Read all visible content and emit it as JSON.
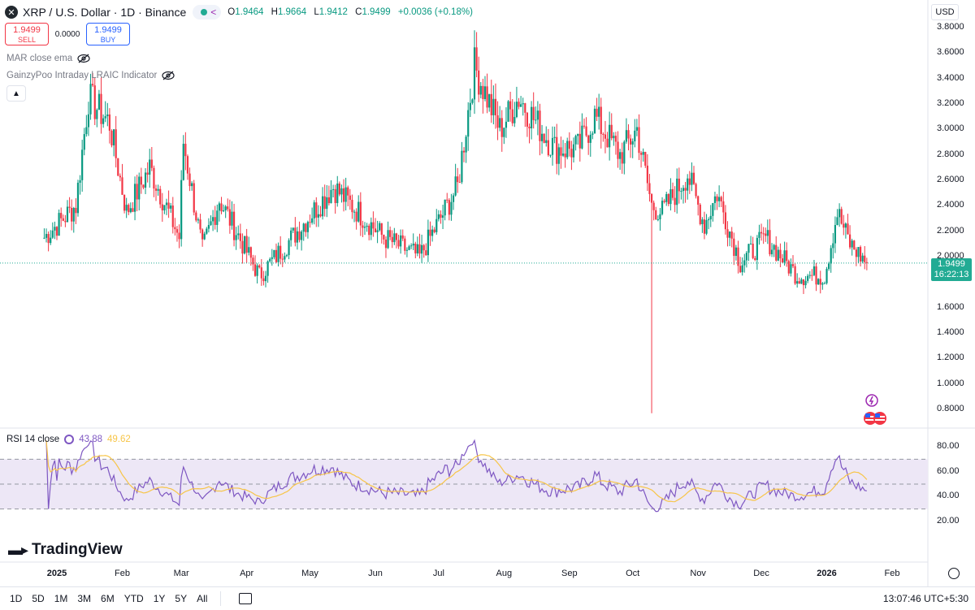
{
  "header": {
    "symbol_title": "XRP / U.S. Dollar · 1D · Binance",
    "logo_glyph": "✕",
    "ohlc": {
      "o_label": "O",
      "o_value": "1.9464",
      "h_label": "H",
      "h_value": "1.9664",
      "l_label": "L",
      "l_value": "1.9412",
      "c_label": "C",
      "c_value": "1.9499",
      "change": "+0.0036 (+0.18%)"
    }
  },
  "trade": {
    "sell_price": "1.9499",
    "sell_label": "SELL",
    "spread": "0.0000",
    "buy_price": "1.9499",
    "buy_label": "BUY"
  },
  "indicators": [
    {
      "label": "MAR close ema"
    },
    {
      "label": "GainzyPoo Intraday LRAIC Indicator"
    }
  ],
  "currency": "USD",
  "price_axis": [
    "3.8000",
    "3.6000",
    "3.4000",
    "3.2000",
    "3.0000",
    "2.8000",
    "2.6000",
    "2.4000",
    "2.2000",
    "2.0000",
    "1.6000",
    "1.4000",
    "1.2000",
    "1.0000",
    "0.8000"
  ],
  "price_tag": {
    "price": "1.9499",
    "countdown": "16:22:13"
  },
  "rsi": {
    "title": "RSI 14 close",
    "rsi_value": "43.88",
    "ma_value": "49.62",
    "axis": [
      "80.00",
      "60.00",
      "40.00",
      "20.00"
    ]
  },
  "time_axis": [
    {
      "label": "2025",
      "bold": true
    },
    {
      "label": "Feb"
    },
    {
      "label": "Mar"
    },
    {
      "label": "Apr"
    },
    {
      "label": "May"
    },
    {
      "label": "Jun"
    },
    {
      "label": "Jul"
    },
    {
      "label": "Aug"
    },
    {
      "label": "Sep"
    },
    {
      "label": "Oct"
    },
    {
      "label": "Nov"
    },
    {
      "label": "Dec"
    },
    {
      "label": "2026",
      "bold": true
    },
    {
      "label": "Feb"
    }
  ],
  "brand": "TradingView",
  "bottom_bar": {
    "ranges": [
      "1D",
      "5D",
      "1M",
      "3M",
      "6M",
      "YTD",
      "1Y",
      "5Y",
      "All"
    ],
    "clock": "13:07:46 UTC+5:30"
  },
  "colors": {
    "up": "#089981",
    "down": "#f23645",
    "rsi_line": "#7e57c2",
    "rsi_ma": "#f7c548",
    "rsi_band": "#ede7f6",
    "last_price": "#22ab94"
  },
  "chart_data": {
    "type": "candlestick",
    "symbol": "XRP / U.S. Dollar",
    "interval": "1D",
    "exchange": "Binance",
    "ylim": [
      0.75,
      3.85
    ],
    "last_price": 1.9499,
    "anchors": [
      {
        "date": "2024-12-26",
        "close": 2.15
      },
      {
        "date": "2025-01-10",
        "close": 2.4
      },
      {
        "date": "2025-01-16",
        "close": 3.25
      },
      {
        "date": "2025-01-26",
        "close": 3.05
      },
      {
        "date": "2025-02-03",
        "close": 2.35
      },
      {
        "date": "2025-02-14",
        "close": 2.7
      },
      {
        "date": "2025-02-28",
        "close": 2.15
      },
      {
        "date": "2025-03-02",
        "close": 2.9
      },
      {
        "date": "2025-03-11",
        "close": 2.05
      },
      {
        "date": "2025-03-19",
        "close": 2.45
      },
      {
        "date": "2025-04-07",
        "close": 1.85
      },
      {
        "date": "2025-04-25",
        "close": 2.2
      },
      {
        "date": "2025-05-12",
        "close": 2.55
      },
      {
        "date": "2025-06-05",
        "close": 2.15
      },
      {
        "date": "2025-06-22",
        "close": 2.0
      },
      {
        "date": "2025-07-10",
        "close": 2.55
      },
      {
        "date": "2025-07-18",
        "close": 3.5
      },
      {
        "date": "2025-07-30",
        "close": 3.0
      },
      {
        "date": "2025-08-08",
        "close": 3.25
      },
      {
        "date": "2025-08-25",
        "close": 2.85
      },
      {
        "date": "2025-09-05",
        "close": 2.85
      },
      {
        "date": "2025-09-13",
        "close": 3.1
      },
      {
        "date": "2025-09-25",
        "close": 2.8
      },
      {
        "date": "2025-10-03",
        "close": 3.0
      },
      {
        "date": "2025-10-10",
        "close": 2.4
      },
      {
        "date": "2025-10-15",
        "close": 2.35
      },
      {
        "date": "2025-10-27",
        "close": 2.65
      },
      {
        "date": "2025-11-04",
        "close": 2.25
      },
      {
        "date": "2025-11-10",
        "close": 2.5
      },
      {
        "date": "2025-11-21",
        "close": 1.95
      },
      {
        "date": "2025-12-03",
        "close": 2.15
      },
      {
        "date": "2025-12-18",
        "close": 1.85
      },
      {
        "date": "2025-12-31",
        "close": 1.85
      },
      {
        "date": "2026-01-06",
        "close": 2.35
      },
      {
        "date": "2026-01-12",
        "close": 2.1
      },
      {
        "date": "2026-01-20",
        "close": 1.95
      }
    ],
    "notable_wicks": [
      {
        "date": "2025-10-10",
        "low": 0.77
      }
    ]
  }
}
